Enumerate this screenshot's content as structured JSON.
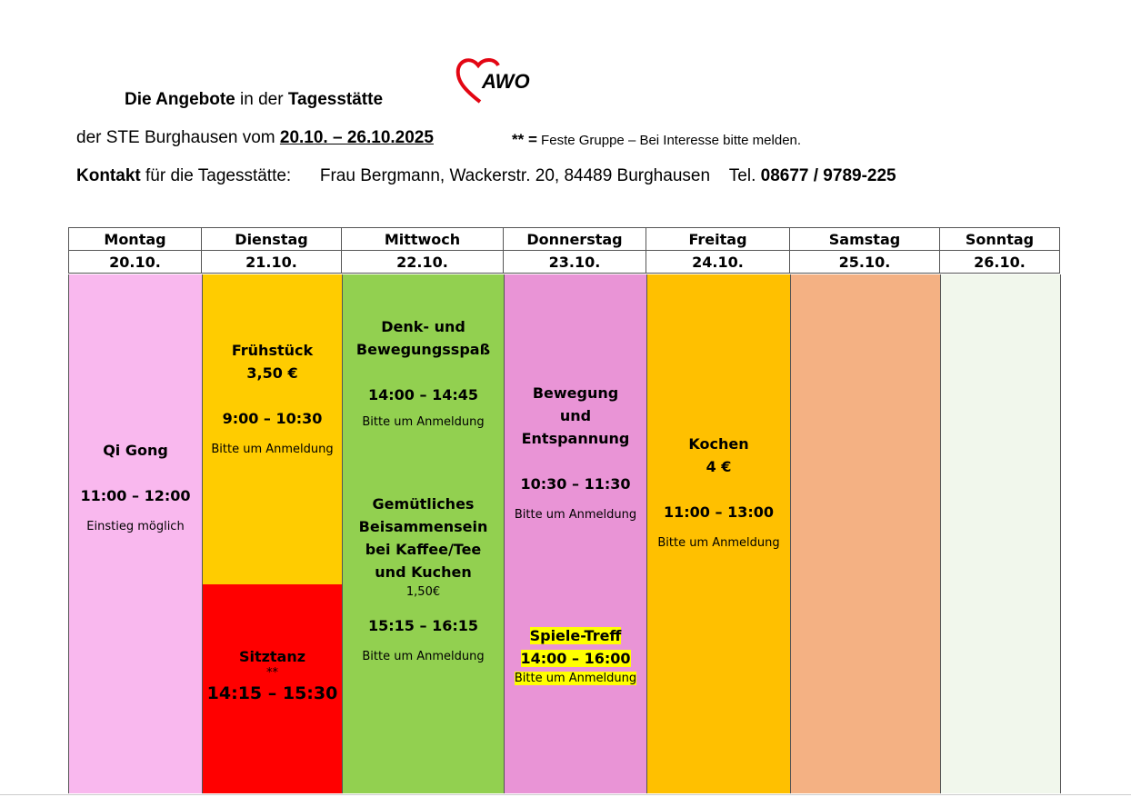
{
  "header": {
    "title_bold1": "Die Angebote",
    "title_mid": " in der ",
    "title_bold2": "Tagesstätte",
    "line2_prefix": "der STE Burghausen vom ",
    "date_range": "20.10. – 26.10.2025",
    "note_stars": "** =",
    "note_text": " Feste Gruppe – Bei Interesse bitte melden.",
    "contact_bold": "Kontakt",
    "contact_text": " für die Tagesstätte:      Frau Bergmann, Wackerstr. 20, 84489 Burghausen    Tel. ",
    "phone": "08677 / 9789-225"
  },
  "logo": {
    "text": "AWO",
    "color": "#e30613"
  },
  "days": [
    {
      "name": "Montag",
      "date": "20.10.",
      "color": "#f9b8ee"
    },
    {
      "name": "Dienstag",
      "date": "21.10.",
      "color": "#ffcc00"
    },
    {
      "name": "Mittwoch",
      "date": "22.10.",
      "color": "#92d050"
    },
    {
      "name": "Donnerstag",
      "date": "23.10.",
      "color": "#e994d6"
    },
    {
      "name": "Freitag",
      "date": "24.10.",
      "color": "#ffc000"
    },
    {
      "name": "Samstag",
      "date": "25.10.",
      "color": "#f4b183"
    },
    {
      "name": "Sonntag",
      "date": "26.10.",
      "color": "#f1f7ec"
    }
  ],
  "events": {
    "mon": {
      "title": "Qi Gong",
      "time": "11:00 – 12:00",
      "note": "Einstieg möglich"
    },
    "tue1": {
      "title": "Frühstück",
      "price": "3,50 €",
      "time": "9:00 – 10:30",
      "note": "Bitte um Anmeldung"
    },
    "tue2": {
      "title": "Sitztanz",
      "stars": "**",
      "time": "14:15 – 15:30",
      "color": "#ff0000"
    },
    "wed1": {
      "title1": "Denk- und",
      "title2": "Bewegungsspaß",
      "time": "14:00 – 14:45",
      "note": "Bitte um Anmeldung"
    },
    "wed2": {
      "title1": "Gemütliches",
      "title2": "Beisammensein",
      "title3": "bei Kaffee/Tee",
      "title4": "und Kuchen",
      "price": "1,50€",
      "time": "15:15 – 16:15",
      "note": "Bitte um Anmeldung"
    },
    "thu1": {
      "title1": "Bewegung",
      "title2": "und",
      "title3": "Entspannung",
      "time": "10:30 – 11:30",
      "note": "Bitte um Anmeldung"
    },
    "thu2": {
      "title": "Spiele-Treff",
      "time": "14:00 – 16:00",
      "note": "Bitte um Anmeldung",
      "highlight": "#ffff00"
    },
    "fri": {
      "title": "Kochen",
      "price": "4 €",
      "time": "11:00 – 13:00",
      "note": "Bitte um Anmeldung"
    }
  }
}
